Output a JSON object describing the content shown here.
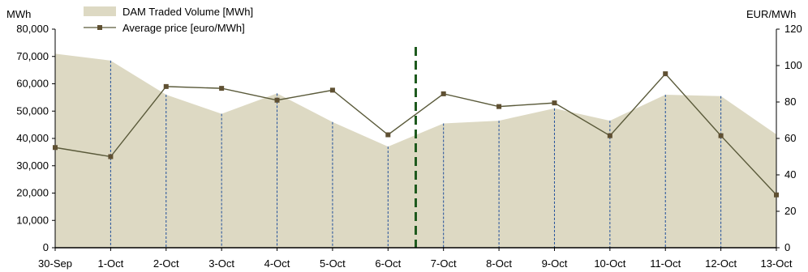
{
  "chart_data": {
    "type": "area",
    "categories": [
      "30-Sep",
      "1-Oct",
      "2-Oct",
      "3-Oct",
      "4-Oct",
      "5-Oct",
      "6-Oct",
      "7-Oct",
      "8-Oct",
      "9-Oct",
      "10-Oct",
      "11-Oct",
      "12-Oct",
      "13-Oct"
    ],
    "series": [
      {
        "name": "DAM Traded Volume [MWh]",
        "type": "area",
        "axis": "left",
        "color": "#ddd9c3",
        "values": [
          71000,
          68500,
          56000,
          49000,
          56500,
          46000,
          37000,
          45500,
          46500,
          51000,
          46500,
          56000,
          55500,
          41500
        ]
      },
      {
        "name": "Average price  [euro/MWh]",
        "type": "line",
        "axis": "right",
        "color": "#5a5a3a",
        "marker_color": "#5f5032",
        "values": [
          55,
          50,
          88.5,
          87.5,
          81,
          86.5,
          62,
          84.5,
          77.5,
          79.5,
          61.5,
          95.5,
          61.5,
          29
        ]
      }
    ],
    "left_axis": {
      "unit": "MWh",
      "ylim": [
        0,
        80000
      ],
      "ticks": [
        "0",
        "10,000",
        "20,000",
        "30,000",
        "40,000",
        "50,000",
        "60,000",
        "70,000",
        "80,000"
      ]
    },
    "right_axis": {
      "unit": "EUR/MWh",
      "ylim": [
        0,
        120
      ],
      "ticks": [
        "0",
        "20",
        "40",
        "60",
        "80",
        "100",
        "120"
      ]
    },
    "marker_line": {
      "position_between": [
        "6-Oct",
        "7-Oct"
      ],
      "style": "dashed",
      "color": "#1e5a1e"
    },
    "grid": false,
    "legend": "top-left"
  }
}
